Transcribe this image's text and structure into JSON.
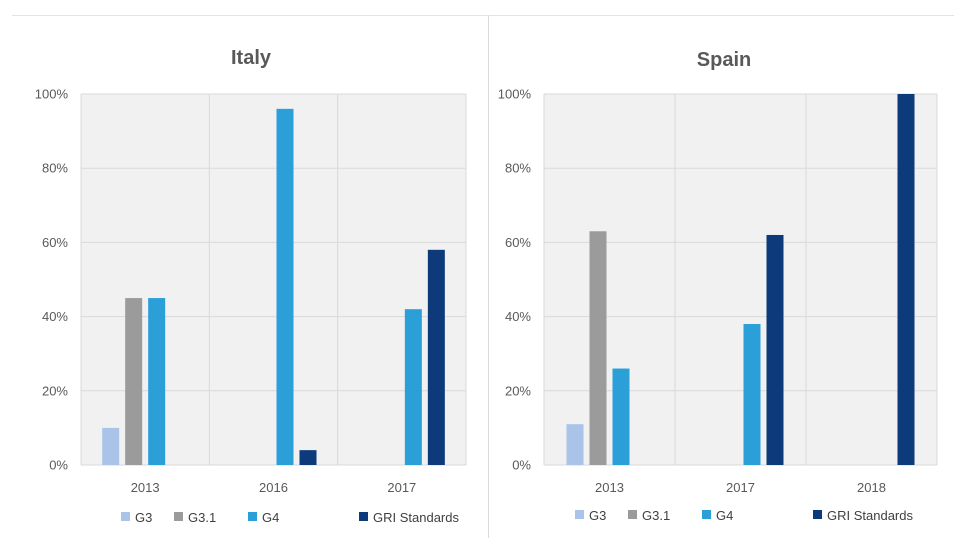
{
  "colors": {
    "G3": "#a9c4e8",
    "G3.1": "#9b9b9b",
    "G4": "#2a9fd8",
    "GRI Standards": "#0c3a7a",
    "plot_background": "#f1f1f1",
    "gridline": "#d9d9d9"
  },
  "chart_data": [
    {
      "type": "bar",
      "title": "Italy",
      "categories": [
        "2013",
        "2016",
        "2017"
      ],
      "series": [
        {
          "name": "G3",
          "values": [
            10,
            0,
            0
          ]
        },
        {
          "name": "G3.1",
          "values": [
            45,
            0,
            0
          ]
        },
        {
          "name": "G4",
          "values": [
            45,
            96,
            42
          ]
        },
        {
          "name": "GRI Standards",
          "values": [
            0,
            4,
            58
          ]
        }
      ],
      "ylim": [
        0,
        100
      ],
      "y_ticks": [
        "0%",
        "20%",
        "40%",
        "60%",
        "80%",
        "100%"
      ],
      "xlabel": "",
      "ylabel": "",
      "grid": true,
      "legend": "bottom"
    },
    {
      "type": "bar",
      "title": "Spain",
      "categories": [
        "2013",
        "2017",
        "2018"
      ],
      "series": [
        {
          "name": "G3",
          "values": [
            11,
            0,
            0
          ]
        },
        {
          "name": "G3.1",
          "values": [
            63,
            0,
            0
          ]
        },
        {
          "name": "G4",
          "values": [
            26,
            38,
            0
          ]
        },
        {
          "name": "GRI Standards",
          "values": [
            0,
            62,
            100
          ]
        }
      ],
      "ylim": [
        0,
        100
      ],
      "y_ticks": [
        "0%",
        "20%",
        "40%",
        "60%",
        "80%",
        "100%"
      ],
      "xlabel": "",
      "ylabel": "",
      "grid": true,
      "legend": "bottom"
    }
  ]
}
